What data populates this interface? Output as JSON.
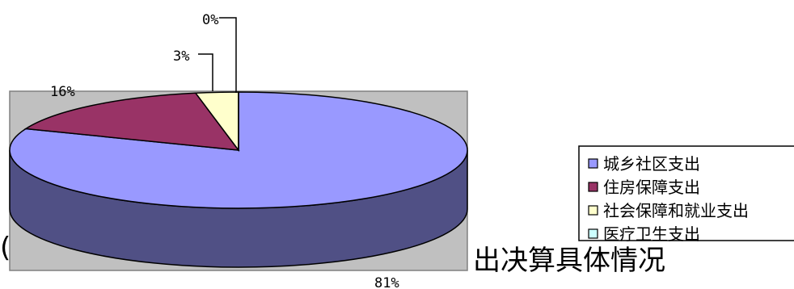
{
  "background_text": {
    "left": "(",
    "right": "出决算具体情况"
  },
  "chart_data": {
    "type": "pie",
    "style": "3d-exploded",
    "slices": [
      {
        "label": "城乡社区支出",
        "value": 81,
        "display": "81%",
        "color": "#9999ff"
      },
      {
        "label": "住房保障支出",
        "value": 16,
        "display": "16%",
        "color": "#993366"
      },
      {
        "label": "社会保障和就业支出",
        "value": 3,
        "display": "3%",
        "color": "#ffffcc"
      },
      {
        "label": "医疗卫生支出",
        "value": 0,
        "display": "0%",
        "color": "#ccffff"
      }
    ],
    "legend_position": "right",
    "plot_background": "#c0c0c0"
  }
}
